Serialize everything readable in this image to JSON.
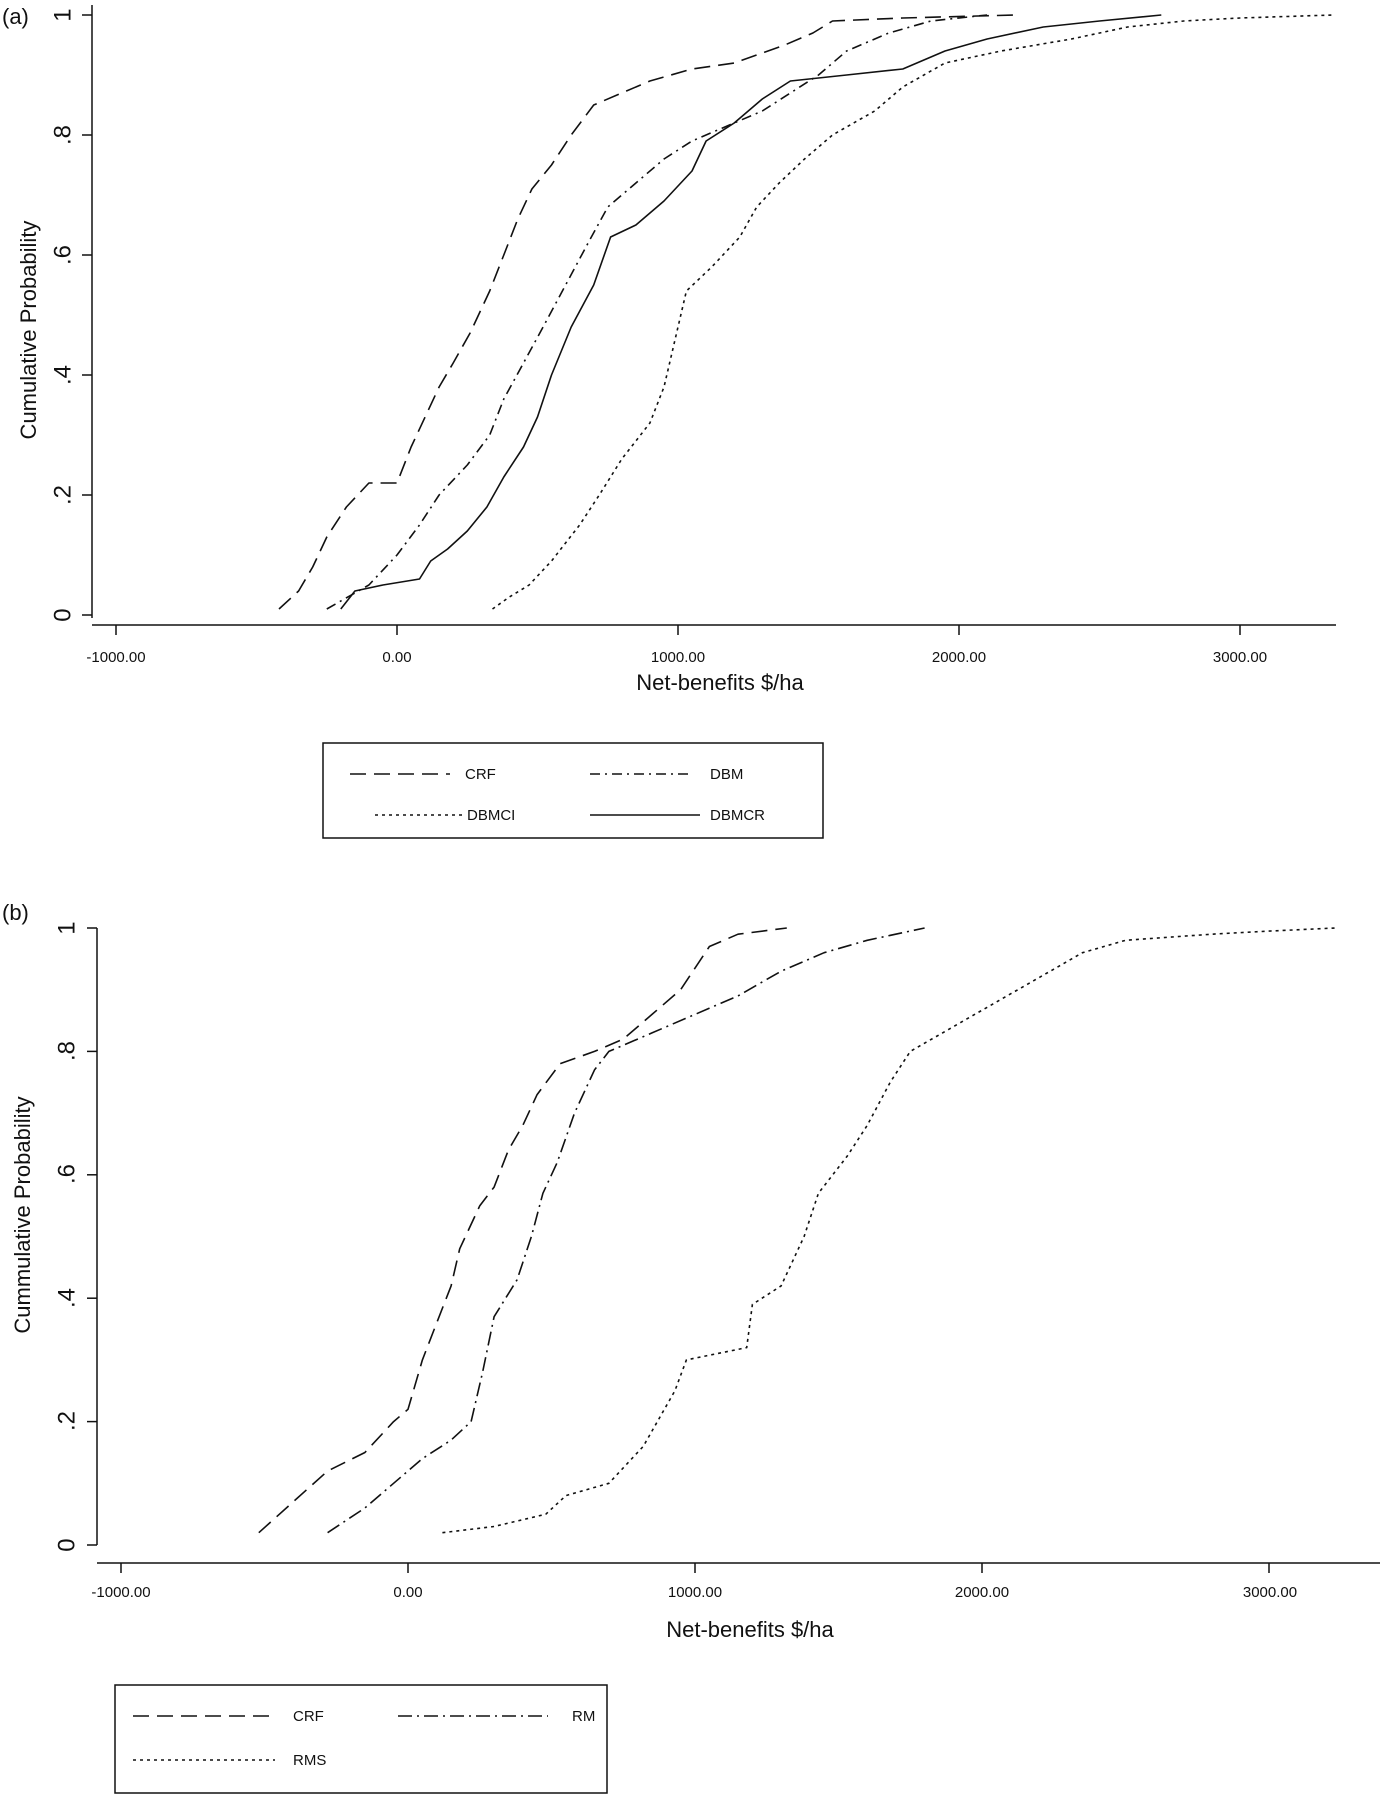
{
  "chart_data": [
    {
      "panel": "(a)",
      "type": "line",
      "xlabel": "Net-benefits $/ha",
      "ylabel": "Cumulative Probability",
      "xlim": [
        -1000,
        3350
      ],
      "ylim": [
        0,
        1
      ],
      "xticks": [
        -1000,
        0,
        1000,
        2000,
        3000
      ],
      "xtick_labels": [
        "-1000.00",
        "0.00",
        "1000.00",
        "2000.00",
        "3000.00"
      ],
      "yticks": [
        0,
        0.2,
        0.4,
        0.6,
        0.8,
        1
      ],
      "ytick_labels": [
        "0",
        ".2",
        ".4",
        ".6",
        ".8",
        "1"
      ],
      "series": [
        {
          "name": "CRF",
          "dash": "16,8",
          "points": [
            [
              -420,
              0.01
            ],
            [
              -350,
              0.04
            ],
            [
              -300,
              0.08
            ],
            [
              -250,
              0.13
            ],
            [
              -180,
              0.18
            ],
            [
              -100,
              0.22
            ],
            [
              0,
              0.22
            ],
            [
              50,
              0.28
            ],
            [
              100,
              0.33
            ],
            [
              150,
              0.38
            ],
            [
              200,
              0.42
            ],
            [
              260,
              0.47
            ],
            [
              330,
              0.54
            ],
            [
              380,
              0.6
            ],
            [
              430,
              0.66
            ],
            [
              480,
              0.71
            ],
            [
              550,
              0.75
            ],
            [
              620,
              0.8
            ],
            [
              700,
              0.85
            ],
            [
              800,
              0.87
            ],
            [
              900,
              0.89
            ],
            [
              1050,
              0.91
            ],
            [
              1200,
              0.92
            ],
            [
              1380,
              0.95
            ],
            [
              1480,
              0.97
            ],
            [
              1550,
              0.99
            ],
            [
              1800,
              0.995
            ],
            [
              2200,
              1.0
            ]
          ]
        },
        {
          "name": "DBM",
          "dash": "10,5,2,5",
          "points": [
            [
              -250,
              0.01
            ],
            [
              -100,
              0.05
            ],
            [
              0,
              0.1
            ],
            [
              80,
              0.15
            ],
            [
              150,
              0.2
            ],
            [
              250,
              0.25
            ],
            [
              330,
              0.3
            ],
            [
              380,
              0.36
            ],
            [
              450,
              0.42
            ],
            [
              520,
              0.48
            ],
            [
              600,
              0.55
            ],
            [
              680,
              0.62
            ],
            [
              750,
              0.68
            ],
            [
              850,
              0.72
            ],
            [
              950,
              0.76
            ],
            [
              1050,
              0.79
            ],
            [
              1150,
              0.81
            ],
            [
              1300,
              0.84
            ],
            [
              1400,
              0.87
            ],
            [
              1500,
              0.9
            ],
            [
              1600,
              0.94
            ],
            [
              1750,
              0.97
            ],
            [
              1900,
              0.99
            ],
            [
              2100,
              1.0
            ]
          ]
        },
        {
          "name": "DBMCI",
          "dash": "3,4",
          "points": [
            [
              340,
              0.01
            ],
            [
              400,
              0.03
            ],
            [
              470,
              0.05
            ],
            [
              550,
              0.09
            ],
            [
              650,
              0.15
            ],
            [
              720,
              0.2
            ],
            [
              800,
              0.26
            ],
            [
              900,
              0.32
            ],
            [
              950,
              0.38
            ],
            [
              1000,
              0.48
            ],
            [
              1030,
              0.54
            ],
            [
              1120,
              0.58
            ],
            [
              1220,
              0.63
            ],
            [
              1280,
              0.68
            ],
            [
              1360,
              0.72
            ],
            [
              1450,
              0.76
            ],
            [
              1550,
              0.8
            ],
            [
              1700,
              0.84
            ],
            [
              1800,
              0.88
            ],
            [
              1950,
              0.92
            ],
            [
              2150,
              0.94
            ],
            [
              2400,
              0.96
            ],
            [
              2600,
              0.98
            ],
            [
              2800,
              0.99
            ],
            [
              3000,
              0.995
            ],
            [
              3330,
              1.0
            ]
          ]
        },
        {
          "name": "DBMCR",
          "dash": "",
          "points": [
            [
              -200,
              0.01
            ],
            [
              -150,
              0.04
            ],
            [
              -50,
              0.05
            ],
            [
              80,
              0.06
            ],
            [
              120,
              0.09
            ],
            [
              180,
              0.11
            ],
            [
              250,
              0.14
            ],
            [
              320,
              0.18
            ],
            [
              380,
              0.23
            ],
            [
              450,
              0.28
            ],
            [
              500,
              0.33
            ],
            [
              550,
              0.4
            ],
            [
              620,
              0.48
            ],
            [
              700,
              0.55
            ],
            [
              760,
              0.63
            ],
            [
              850,
              0.65
            ],
            [
              950,
              0.69
            ],
            [
              1050,
              0.74
            ],
            [
              1100,
              0.79
            ],
            [
              1200,
              0.82
            ],
            [
              1300,
              0.86
            ],
            [
              1400,
              0.89
            ],
            [
              1600,
              0.9
            ],
            [
              1800,
              0.91
            ],
            [
              1950,
              0.94
            ],
            [
              2100,
              0.96
            ],
            [
              2300,
              0.98
            ],
            [
              2500,
              0.99
            ],
            [
              2720,
              1.0
            ]
          ]
        }
      ],
      "legend": {
        "placement": "below",
        "entries": [
          "CRF",
          "DBM",
          "DBMCI",
          "DBMCR"
        ]
      }
    },
    {
      "panel": "(b)",
      "type": "line",
      "xlabel": "Net-benefits $/ha",
      "ylabel": "Cummulative Probability",
      "xlim": [
        -1000,
        3400
      ],
      "ylim": [
        0,
        1
      ],
      "xticks": [
        -1000,
        0,
        1000,
        2000,
        3000
      ],
      "xtick_labels": [
        "-1000.00",
        "0.00",
        "1000.00",
        "2000.00",
        "3000.00"
      ],
      "yticks": [
        0,
        0.2,
        0.4,
        0.6,
        0.8,
        1
      ],
      "ytick_labels": [
        "0",
        ".2",
        ".4",
        ".6",
        ".8",
        "1"
      ],
      "series": [
        {
          "name": "CRF",
          "dash": "16,8",
          "points": [
            [
              -520,
              0.02
            ],
            [
              -400,
              0.07
            ],
            [
              -280,
              0.12
            ],
            [
              -150,
              0.15
            ],
            [
              -50,
              0.2
            ],
            [
              0,
              0.22
            ],
            [
              50,
              0.3
            ],
            [
              100,
              0.36
            ],
            [
              150,
              0.42
            ],
            [
              180,
              0.48
            ],
            [
              250,
              0.55
            ],
            [
              300,
              0.58
            ],
            [
              350,
              0.64
            ],
            [
              400,
              0.68
            ],
            [
              450,
              0.73
            ],
            [
              530,
              0.78
            ],
            [
              650,
              0.8
            ],
            [
              750,
              0.82
            ],
            [
              850,
              0.86
            ],
            [
              950,
              0.9
            ],
            [
              1050,
              0.97
            ],
            [
              1150,
              0.99
            ],
            [
              1320,
              1.0
            ]
          ]
        },
        {
          "name": "RM",
          "dash": "14,5,2,5",
          "points": [
            [
              -280,
              0.02
            ],
            [
              -150,
              0.06
            ],
            [
              -50,
              0.1
            ],
            [
              50,
              0.14
            ],
            [
              150,
              0.17
            ],
            [
              220,
              0.2
            ],
            [
              260,
              0.28
            ],
            [
              300,
              0.37
            ],
            [
              380,
              0.43
            ],
            [
              430,
              0.5
            ],
            [
              470,
              0.57
            ],
            [
              520,
              0.62
            ],
            [
              580,
              0.7
            ],
            [
              650,
              0.77
            ],
            [
              700,
              0.8
            ],
            [
              850,
              0.83
            ],
            [
              1000,
              0.86
            ],
            [
              1150,
              0.89
            ],
            [
              1300,
              0.93
            ],
            [
              1450,
              0.96
            ],
            [
              1600,
              0.98
            ],
            [
              1800,
              1.0
            ]
          ]
        },
        {
          "name": "RMS",
          "dash": "3,4",
          "points": [
            [
              120,
              0.02
            ],
            [
              300,
              0.03
            ],
            [
              480,
              0.05
            ],
            [
              550,
              0.08
            ],
            [
              700,
              0.1
            ],
            [
              820,
              0.16
            ],
            [
              930,
              0.25
            ],
            [
              970,
              0.3
            ],
            [
              1180,
              0.32
            ],
            [
              1200,
              0.39
            ],
            [
              1300,
              0.42
            ],
            [
              1380,
              0.5
            ],
            [
              1430,
              0.57
            ],
            [
              1530,
              0.63
            ],
            [
              1600,
              0.68
            ],
            [
              1680,
              0.75
            ],
            [
              1750,
              0.8
            ],
            [
              1900,
              0.84
            ],
            [
              2050,
              0.88
            ],
            [
              2200,
              0.92
            ],
            [
              2350,
              0.96
            ],
            [
              2500,
              0.98
            ],
            [
              2800,
              0.99
            ],
            [
              3000,
              0.995
            ],
            [
              3230,
              1.0
            ]
          ]
        }
      ],
      "legend": {
        "placement": "below",
        "entries": [
          "CRF",
          "RM",
          "RMS"
        ]
      }
    }
  ]
}
